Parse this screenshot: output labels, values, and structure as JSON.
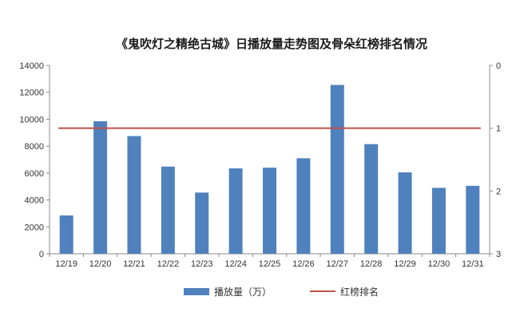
{
  "chart_data": {
    "type": "bar",
    "title": "《鬼吹灯之精绝古城》日播放量走势图及骨朵红榜排名情况",
    "categories": [
      "12/19",
      "12/20",
      "12/21",
      "12/22",
      "12/23",
      "12/24",
      "12/25",
      "12/26",
      "12/27",
      "12/28",
      "12/29",
      "12/30",
      "12/31"
    ],
    "series": [
      {
        "name": "播放量（万）",
        "kind": "bar",
        "axis": "left",
        "color": "#4f81bd",
        "values": [
          2850,
          9850,
          8750,
          6480,
          4550,
          6350,
          6400,
          7100,
          12550,
          8150,
          6050,
          4900,
          5050
        ]
      },
      {
        "name": "红榜排名",
        "kind": "line",
        "axis": "right",
        "color": "#c0504d",
        "values": [
          1,
          1,
          1,
          1,
          1,
          1,
          1,
          1,
          1,
          1,
          1,
          1,
          1
        ]
      }
    ],
    "y_left": {
      "min": 0,
      "max": 14000,
      "ticks": [
        "0",
        "2000",
        "4000",
        "6000",
        "8000",
        "10000",
        "12000",
        "14000"
      ]
    },
    "y_right": {
      "min": 0,
      "max": 3,
      "inverted": true,
      "ticks": [
        "0",
        "1",
        "2",
        "3"
      ]
    },
    "grid": false,
    "legend_position": "bottom"
  }
}
